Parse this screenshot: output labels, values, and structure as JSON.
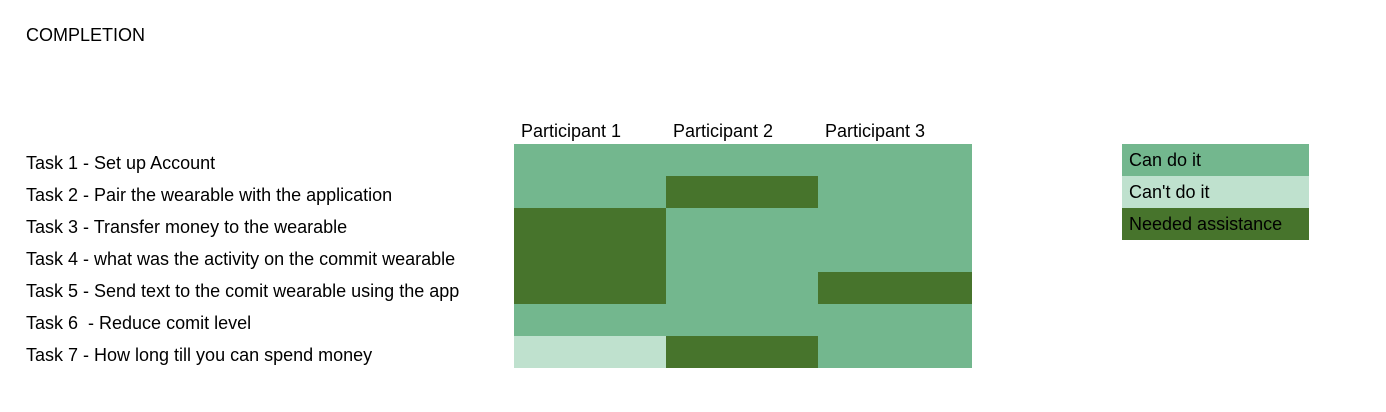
{
  "title": "COMPLETION",
  "participants": [
    "Participant 1",
    "Participant 2",
    "Participant 3"
  ],
  "tasks": [
    {
      "label": "Task 1 - Set up Account",
      "results": [
        "can",
        "can",
        "can"
      ]
    },
    {
      "label": "Task 2 - Pair the wearable with the application",
      "results": [
        "can",
        "assist",
        "can"
      ]
    },
    {
      "label": "Task 3 - Transfer money to the wearable",
      "results": [
        "assist",
        "can",
        "can"
      ]
    },
    {
      "label": "Task 4 - what was the activity on the commit wearable",
      "results": [
        "assist",
        "can",
        "can"
      ]
    },
    {
      "label": "Task 5 - Send text to the comit wearable using the app",
      "results": [
        "assist",
        "can",
        "assist"
      ]
    },
    {
      "label": "Task 6  - Reduce comit level",
      "results": [
        "can",
        "can",
        "can"
      ]
    },
    {
      "label": "Task 7 - How long till you can spend money",
      "results": [
        "cant",
        "assist",
        "can"
      ]
    }
  ],
  "legend": [
    {
      "key": "can",
      "label": "Can do it",
      "color": "#73b78e"
    },
    {
      "key": "cant",
      "label": "Can't do it",
      "color": "#bfe1ce"
    },
    {
      "key": "assist",
      "label": "Needed assistance",
      "color": "#47742c"
    }
  ]
}
